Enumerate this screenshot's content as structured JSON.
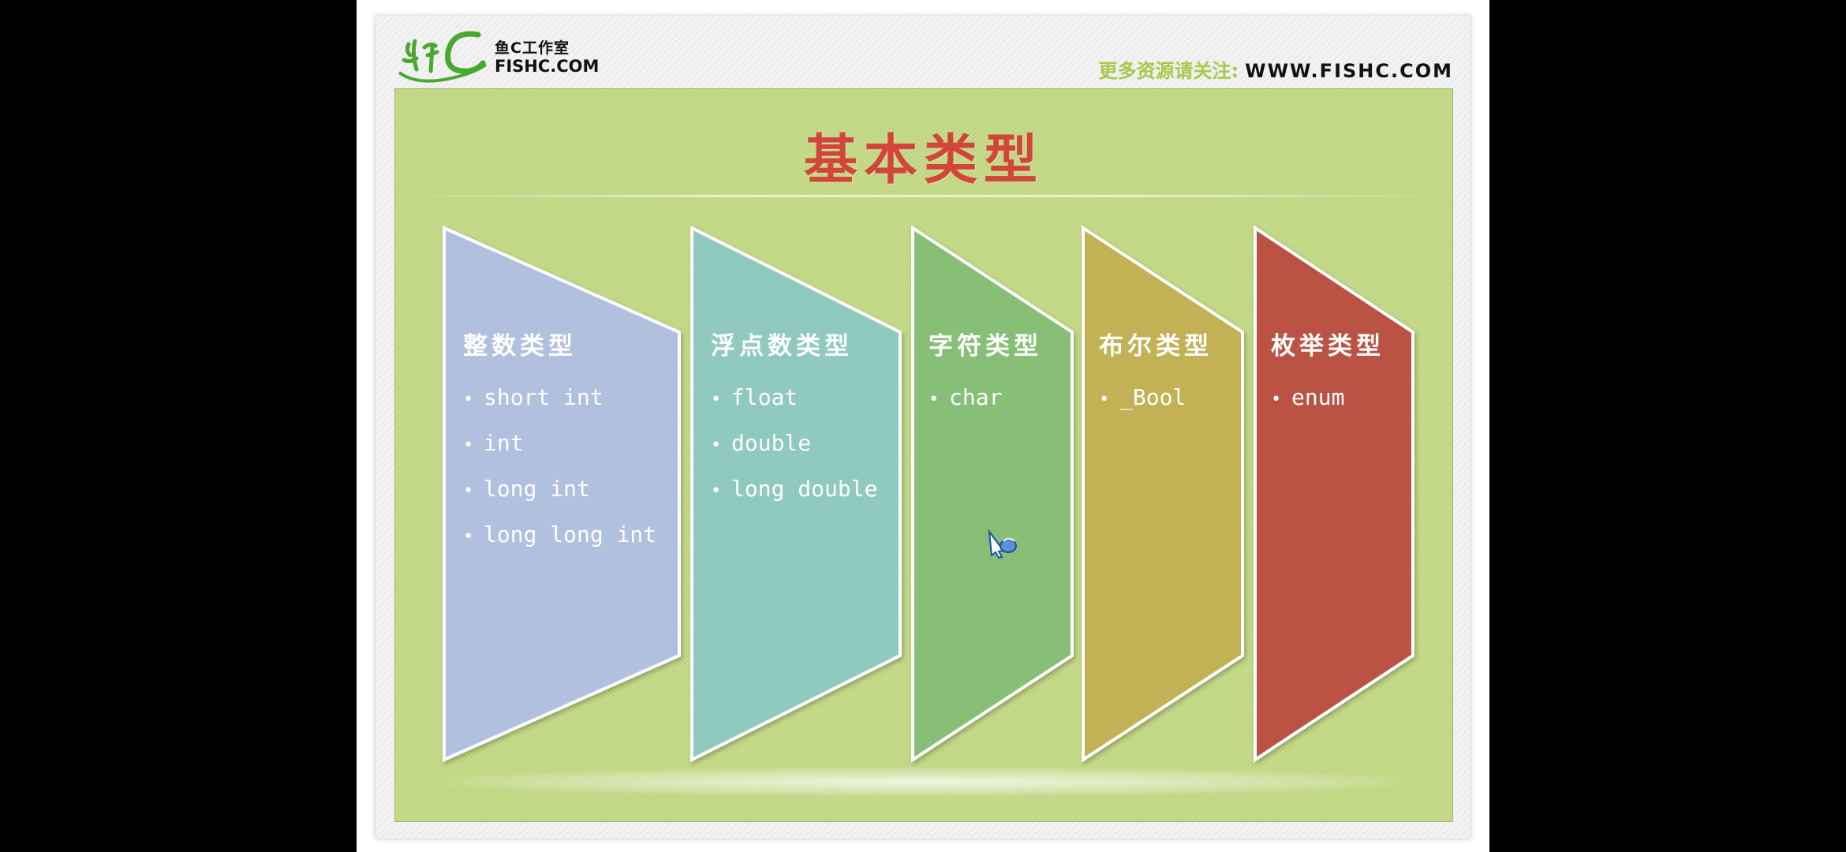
{
  "header": {
    "logo_studio": "鱼C工作室",
    "logo_domain": "FISHC.COM",
    "follow_prefix": "更多资源请关注:",
    "follow_url": "WWW.FISHC.COM"
  },
  "slide": {
    "title": "基本类型",
    "columns": [
      {
        "title": "整数类型",
        "items": [
          "short int",
          "int",
          "long int",
          "long long int"
        ],
        "color": "#b1c0df"
      },
      {
        "title": "浮点数类型",
        "items": [
          "float",
          "double",
          "long double"
        ],
        "color": "#8fc9bf"
      },
      {
        "title": "字符类型",
        "items": [
          "char"
        ],
        "color": "#86bf74"
      },
      {
        "title": "布尔类型",
        "items": [
          "_Bool"
        ],
        "color": "#c2b255"
      },
      {
        "title": "枚举类型",
        "items": [
          "enum"
        ],
        "color": "#bb5245"
      }
    ]
  },
  "colors": {
    "panel": "#c3d985",
    "title": "#d2463a",
    "logo_green": "#4aa82f"
  },
  "icons": {
    "cursor": "hand-pointer-icon",
    "logo": "fishc-logo-icon"
  }
}
